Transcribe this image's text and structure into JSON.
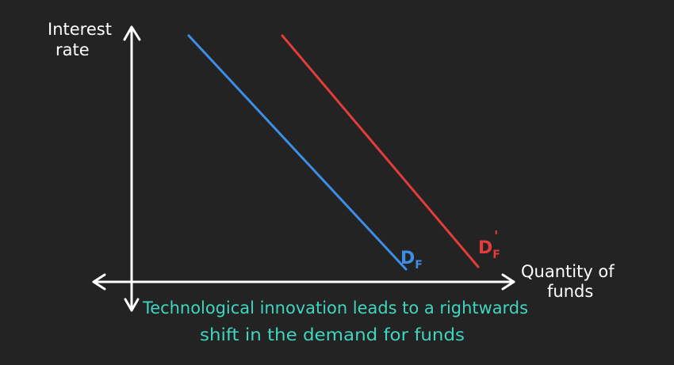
{
  "diagram": {
    "y_axis_label_line1": "Interest",
    "y_axis_label_line2": "rate",
    "x_axis_label_line1": "Quantity of",
    "x_axis_label_line2": "funds",
    "curves": [
      {
        "label": "D",
        "subscript": "F",
        "prime": "",
        "color": "#3d8ee6"
      },
      {
        "label": "D",
        "subscript": "F",
        "prime": "'",
        "color": "#e23c3c"
      }
    ],
    "caption_line1": "Technological innovation leads to a rightwards",
    "caption_line2": "shift in the demand for funds",
    "colors": {
      "background": "#232323",
      "axes": "#ffffff",
      "caption": "#3fd6c0"
    }
  }
}
